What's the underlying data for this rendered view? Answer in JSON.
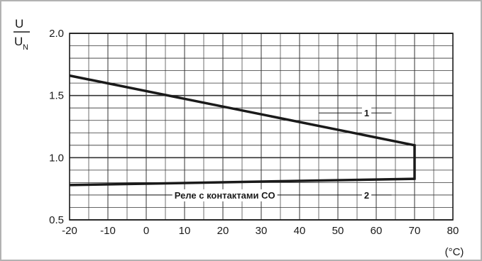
{
  "chart_data": {
    "type": "line",
    "ylabel_top": "U",
    "ylabel_bottom_base": "U",
    "ylabel_bottom_sub": "N",
    "xunit": "(°C)",
    "xlim": [
      -20,
      80
    ],
    "ylim": [
      0.5,
      2.0
    ],
    "xticks": [
      "-20",
      "-10",
      "0",
      "10",
      "20",
      "30",
      "40",
      "50",
      "60",
      "70",
      "80"
    ],
    "yticks": [
      "0.5",
      "1.0",
      "1.5",
      "2.0"
    ],
    "grid": true,
    "series": [
      {
        "name": "1",
        "x": [
          -20,
          70
        ],
        "y": [
          1.66,
          1.1
        ]
      },
      {
        "name": "2",
        "x": [
          -20,
          70
        ],
        "y": [
          0.78,
          0.83
        ]
      }
    ],
    "closing_segment": {
      "x": 70,
      "y": [
        0.83,
        1.1
      ]
    },
    "annotations": [
      {
        "text": "1",
        "series": "1"
      },
      {
        "text": "2",
        "series": "2"
      },
      {
        "text": "Реле с контактами CO",
        "series": "2"
      }
    ],
    "colors": {
      "line": "#1a1a1a",
      "grid": "#333333",
      "border": "#b2b2b2"
    }
  }
}
